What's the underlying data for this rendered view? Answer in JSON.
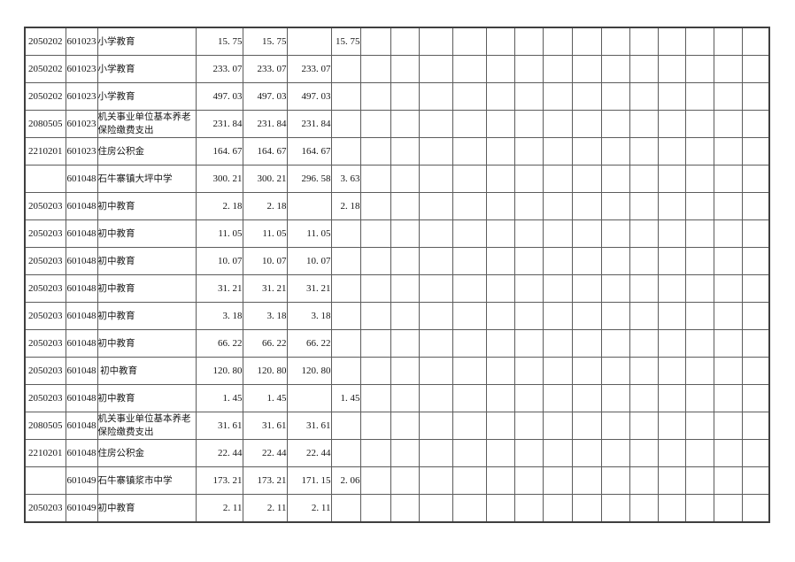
{
  "colors": {
    "background": "#ffffff",
    "outer_border": "#3f3f3f",
    "grid_line": "#5c5c5c",
    "text": "#151515"
  },
  "table": {
    "empty_trailing_columns": 14,
    "rows": [
      {
        "code1": "2050202",
        "code2": "601023",
        "name": "小学教育",
        "values": [
          "15. 75",
          "15. 75",
          "",
          "15. 75"
        ]
      },
      {
        "code1": "2050202",
        "code2": "601023",
        "name": "小学教育",
        "values": [
          "233. 07",
          "233. 07",
          "233. 07",
          ""
        ]
      },
      {
        "code1": "2050202",
        "code2": "601023",
        "name": "小学教育",
        "values": [
          "497. 03",
          "497. 03",
          "497. 03",
          ""
        ]
      },
      {
        "code1": "2080505",
        "code2": "601023",
        "name": "机关事业单位基本养老保险缴费支出",
        "values": [
          "231. 84",
          "231. 84",
          "231. 84",
          ""
        ]
      },
      {
        "code1": "2210201",
        "code2": "601023",
        "name": "住房公积金",
        "values": [
          "164. 67",
          "164. 67",
          "164. 67",
          ""
        ]
      },
      {
        "code1": "",
        "code2": "601048",
        "name": "石牛寨镇大坪中学",
        "values": [
          "300. 21",
          "300. 21",
          "296. 58",
          "3. 63"
        ]
      },
      {
        "code1": "2050203",
        "code2": "601048",
        "name": "初中教育",
        "values": [
          "2. 18",
          "2. 18",
          "",
          "2. 18"
        ]
      },
      {
        "code1": "2050203",
        "code2": "601048",
        "name": "初中教育",
        "values": [
          "11. 05",
          "11. 05",
          "11. 05",
          ""
        ]
      },
      {
        "code1": "2050203",
        "code2": "601048",
        "name": "初中教育",
        "values": [
          "10. 07",
          "10. 07",
          "10. 07",
          ""
        ]
      },
      {
        "code1": "2050203",
        "code2": "601048",
        "name": "初中教育",
        "values": [
          "31. 21",
          "31. 21",
          "31. 21",
          ""
        ]
      },
      {
        "code1": "2050203",
        "code2": "601048",
        "name": "初中教育",
        "values": [
          "3. 18",
          "3. 18",
          "3. 18",
          ""
        ]
      },
      {
        "code1": "2050203",
        "code2": "601048",
        "name": "初中教育",
        "values": [
          "66. 22",
          "66. 22",
          "66. 22",
          ""
        ]
      },
      {
        "code1": "2050203",
        "code2": "601048",
        "name": " 初中教育",
        "values": [
          "120. 80",
          "120. 80",
          "120. 80",
          ""
        ]
      },
      {
        "code1": "2050203",
        "code2": "601048",
        "name": "初中教育",
        "values": [
          "1. 45",
          "1. 45",
          "",
          "1. 45"
        ]
      },
      {
        "code1": "2080505",
        "code2": "601048",
        "name": "机关事业单位基本养老保险缴费支出",
        "values": [
          "31. 61",
          "31. 61",
          "31. 61",
          ""
        ]
      },
      {
        "code1": "2210201",
        "code2": "601048",
        "name": "住房公积金",
        "values": [
          "22. 44",
          "22. 44",
          "22. 44",
          ""
        ]
      },
      {
        "code1": "",
        "code2": "601049",
        "name": "石牛寨镇浆市中学",
        "values": [
          "173. 21",
          "173. 21",
          "171. 15",
          "2. 06"
        ]
      },
      {
        "code1": "2050203",
        "code2": "601049",
        "name": "初中教育",
        "values": [
          "2. 11",
          "2. 11",
          "2. 11",
          ""
        ]
      }
    ]
  }
}
